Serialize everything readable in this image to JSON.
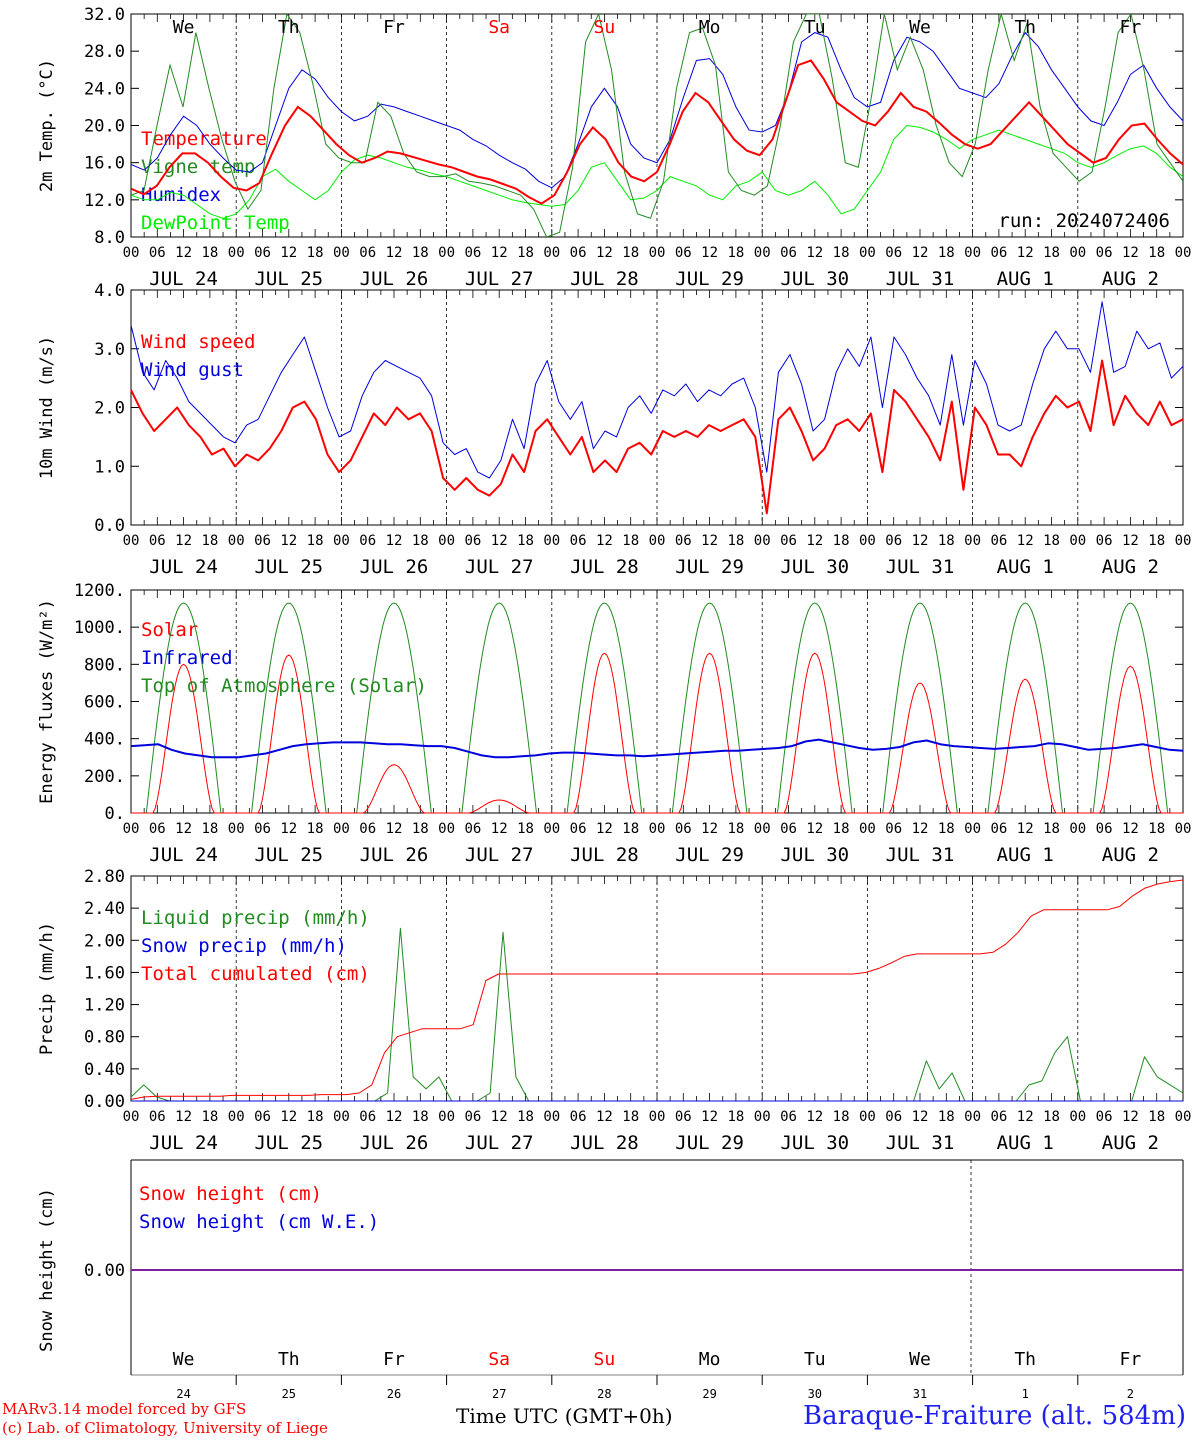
{
  "chart_data": [
    {
      "type": "line",
      "ylabel": "2m Temp. (°C)",
      "ylim": [
        8,
        32
      ],
      "ytick_labels": [
        "8.0",
        "12.0",
        "16.0",
        "20.0",
        "24.0",
        "28.0",
        "32.0"
      ],
      "day_labels": [
        "We",
        "Th",
        "Fr",
        "Sa",
        "Su",
        "Mo",
        "Tu",
        "We",
        "Th",
        "Fr"
      ],
      "day_colors": [
        "#000000",
        "#000000",
        "#000000",
        "#ff0000",
        "#ff0000",
        "#000000",
        "#000000",
        "#000000",
        "#000000",
        "#000000"
      ],
      "annotation": "run: 2024072406",
      "x_hours_step": 6,
      "series": [
        {
          "name": "Temperature",
          "color": "#ff0000",
          "width": 2,
          "values": [
            13.2,
            12.6,
            13.5,
            15.5,
            17.0,
            17.0,
            16.0,
            14.5,
            13.3,
            13.0,
            13.8,
            17.0,
            20.0,
            22.0,
            21.0,
            19.5,
            18.0,
            16.8,
            16.0,
            16.5,
            17.2,
            17.0,
            16.6,
            16.2,
            15.8,
            15.5,
            15.0,
            14.5,
            14.2,
            13.7,
            13.2,
            12.3,
            11.6,
            12.5,
            15.0,
            18.0,
            19.8,
            18.5,
            16.0,
            14.5,
            14.0,
            15.0,
            18.0,
            21.5,
            23.5,
            22.5,
            20.5,
            18.5,
            17.3,
            16.8,
            18.5,
            22.5,
            26.5,
            27.0,
            25.0,
            22.5,
            21.5,
            20.5,
            20.0,
            21.5,
            23.5,
            22.0,
            21.5,
            20.3,
            19.0,
            18.0,
            17.5,
            18.0,
            19.5,
            21.0,
            22.5,
            21.0,
            19.5,
            18.0,
            17.0,
            16.0,
            16.5,
            18.5,
            20.0,
            20.2,
            18.5,
            17.0,
            15.8
          ]
        },
        {
          "name": "Vigne temp",
          "color": "#228b22",
          "width": 1,
          "values": [
            12.5,
            13.0,
            20.0,
            26.5,
            22.0,
            30.0,
            24.0,
            18.5,
            14.0,
            11.0,
            13.0,
            24.0,
            32.0,
            30.0,
            24.5,
            18.0,
            16.5,
            16.0,
            16.0,
            22.5,
            21.0,
            17.0,
            15.0,
            14.5,
            14.5,
            14.8,
            14.0,
            13.8,
            13.5,
            13.0,
            12.5,
            11.0,
            8.0,
            8.5,
            15.5,
            29.0,
            32.0,
            26.0,
            15.0,
            10.5,
            10.0,
            14.0,
            24.0,
            30.0,
            30.5,
            26.5,
            15.0,
            13.0,
            12.5,
            13.5,
            20.0,
            29.0,
            32.0,
            32.0,
            25.0,
            16.0,
            15.5,
            23.0,
            32.0,
            26.0,
            29.5,
            26.0,
            20.0,
            16.0,
            14.5,
            18.0,
            26.0,
            32.0,
            27.0,
            31.0,
            22.0,
            17.0,
            15.5,
            14.0,
            15.0,
            22.0,
            30.0,
            32.0,
            26.0,
            18.0,
            16.0,
            14.0
          ]
        },
        {
          "name": "Humidex",
          "color": "#0000dd",
          "width": 1,
          "values": [
            15.8,
            15.2,
            16.5,
            19.0,
            21.0,
            20.0,
            18.0,
            16.5,
            15.2,
            15.0,
            16.0,
            20.0,
            24.0,
            26.0,
            25.0,
            23.0,
            21.5,
            20.5,
            21.0,
            22.3,
            22.0,
            21.5,
            21.0,
            20.5,
            20.0,
            19.5,
            18.5,
            17.8,
            16.8,
            16.0,
            15.3,
            14.0,
            13.3,
            14.5,
            18.0,
            22.0,
            24.0,
            22.0,
            18.0,
            16.5,
            16.0,
            18.5,
            23.0,
            27.0,
            27.2,
            25.5,
            22.0,
            19.5,
            19.3,
            20.0,
            23.5,
            29.0,
            30.0,
            29.5,
            26.0,
            23.0,
            22.0,
            22.5,
            27.0,
            29.5,
            29.0,
            28.0,
            26.0,
            24.0,
            23.5,
            23.0,
            24.5,
            27.5,
            30.0,
            28.5,
            26.0,
            24.0,
            22.0,
            20.5,
            20.0,
            22.5,
            25.5,
            26.5,
            24.0,
            22.0,
            20.5
          ]
        },
        {
          "name": "DewPoint Temp",
          "color": "#00ee00",
          "width": 1,
          "values": [
            12.5,
            12.0,
            12.0,
            12.8,
            12.5,
            11.5,
            10.5,
            10.0,
            10.5,
            12.0,
            14.5,
            15.3,
            14.0,
            13.0,
            12.0,
            13.0,
            15.0,
            16.3,
            16.8,
            16.5,
            16.0,
            15.5,
            15.2,
            14.8,
            14.5,
            14.0,
            13.5,
            13.0,
            12.5,
            12.0,
            11.7,
            11.5,
            11.3,
            11.5,
            13.0,
            15.5,
            16.0,
            14.0,
            12.0,
            12.2,
            13.0,
            14.5,
            14.0,
            13.5,
            12.5,
            12.0,
            13.5,
            14.0,
            15.0,
            13.0,
            12.5,
            13.0,
            14.0,
            12.5,
            10.5,
            11.0,
            13.0,
            15.0,
            18.5,
            20.0,
            19.8,
            19.3,
            18.5,
            17.5,
            18.5,
            19.0,
            19.5,
            19.0,
            18.5,
            18.0,
            17.5,
            17.0,
            16.0,
            15.5,
            16.0,
            16.8,
            17.5,
            17.8,
            17.0,
            15.5,
            14.5
          ]
        }
      ]
    },
    {
      "type": "line",
      "ylabel": "10m Wind (m/s)",
      "ylim": [
        0,
        4
      ],
      "ytick_labels": [
        "0.0",
        "1.0",
        "2.0",
        "3.0",
        "4.0"
      ],
      "x_hours_step": 6,
      "series": [
        {
          "name": "Wind speed",
          "color": "#ff0000",
          "width": 2,
          "values": [
            2.3,
            1.9,
            1.6,
            1.8,
            2.0,
            1.7,
            1.5,
            1.2,
            1.3,
            1.0,
            1.2,
            1.1,
            1.3,
            1.6,
            2.0,
            2.1,
            1.8,
            1.2,
            0.9,
            1.1,
            1.5,
            1.9,
            1.7,
            2.0,
            1.8,
            1.9,
            1.6,
            0.8,
            0.6,
            0.8,
            0.6,
            0.5,
            0.7,
            1.2,
            0.9,
            1.6,
            1.8,
            1.5,
            1.2,
            1.5,
            0.9,
            1.1,
            0.9,
            1.3,
            1.4,
            1.2,
            1.6,
            1.5,
            1.6,
            1.5,
            1.7,
            1.6,
            1.7,
            1.8,
            1.5,
            0.2,
            1.8,
            2.0,
            1.6,
            1.1,
            1.3,
            1.7,
            1.8,
            1.6,
            1.9,
            0.9,
            2.3,
            2.1,
            1.8,
            1.5,
            1.1,
            2.1,
            0.6,
            2.0,
            1.7,
            1.2,
            1.2,
            1.0,
            1.5,
            1.9,
            2.2,
            2.0,
            2.1,
            1.6,
            2.8,
            1.7,
            2.2,
            1.9,
            1.7,
            2.1,
            1.7,
            1.8
          ]
        },
        {
          "name": "Wind gust",
          "color": "#0000dd",
          "width": 1,
          "values": [
            3.4,
            2.6,
            2.3,
            2.8,
            2.5,
            2.1,
            1.9,
            1.7,
            1.5,
            1.4,
            1.7,
            1.8,
            2.2,
            2.6,
            2.9,
            3.2,
            2.6,
            2.0,
            1.5,
            1.6,
            2.2,
            2.6,
            2.8,
            2.7,
            2.6,
            2.5,
            2.2,
            1.4,
            1.2,
            1.3,
            0.9,
            0.8,
            1.1,
            1.8,
            1.3,
            2.4,
            2.8,
            2.1,
            1.8,
            2.1,
            1.3,
            1.6,
            1.5,
            2.0,
            2.2,
            1.9,
            2.3,
            2.2,
            2.4,
            2.1,
            2.3,
            2.2,
            2.4,
            2.5,
            2.0,
            0.9,
            2.6,
            2.9,
            2.4,
            1.6,
            1.8,
            2.6,
            3.0,
            2.7,
            3.2,
            2.0,
            3.2,
            2.9,
            2.5,
            2.2,
            1.7,
            2.9,
            1.7,
            2.8,
            2.4,
            1.7,
            1.6,
            1.7,
            2.4,
            3.0,
            3.3,
            3.0,
            3.0,
            2.6,
            3.8,
            2.6,
            2.7,
            3.3,
            3.0,
            3.1,
            2.5,
            2.7
          ]
        }
      ]
    },
    {
      "type": "line",
      "ylabel": "Energy fluxes (W/m²)",
      "ylim": [
        0,
        1200
      ],
      "ytick_labels": [
        "0.",
        "200.",
        "400.",
        "600.",
        "800.",
        "1000.",
        "1200."
      ],
      "x_hours_step": 6,
      "series": [
        {
          "name": "Solar",
          "color": "#ff0000",
          "width": 1,
          "day_peaks": [
            800,
            850,
            260,
            70,
            860,
            860,
            860,
            700,
            720,
            790
          ]
        },
        {
          "name": "Infrared",
          "color": "#0000dd",
          "width": 2,
          "values": [
            360,
            365,
            370,
            340,
            320,
            310,
            300,
            300,
            300,
            310,
            320,
            340,
            360,
            370,
            375,
            380,
            380,
            380,
            375,
            370,
            370,
            365,
            360,
            360,
            350,
            330,
            310,
            300,
            300,
            305,
            310,
            320,
            325,
            325,
            320,
            315,
            310,
            310,
            305,
            310,
            315,
            320,
            325,
            330,
            335,
            335,
            340,
            345,
            350,
            360,
            385,
            395,
            380,
            365,
            350,
            340,
            345,
            355,
            380,
            390,
            370,
            360,
            355,
            350,
            345,
            350,
            355,
            360,
            375,
            370,
            355,
            340,
            345,
            350,
            360,
            370,
            355,
            340,
            335
          ]
        },
        {
          "name": "Top of Atmosphere (Solar)",
          "color": "#228b22",
          "width": 1,
          "day_peak": 1130
        }
      ]
    },
    {
      "type": "line",
      "ylabel": "Precip (mm/h)",
      "ylim": [
        0,
        2.8
      ],
      "ytick_labels": [
        "0.00",
        "0.40",
        "0.80",
        "1.20",
        "1.60",
        "2.00",
        "2.40",
        "2.80"
      ],
      "x_hours_step": 6,
      "series": [
        {
          "name": "Liquid precip (mm/h)",
          "color": "#228b22",
          "width": 1,
          "values": [
            0.05,
            0.2,
            0.05,
            0,
            0,
            0,
            0,
            0,
            0,
            0,
            0,
            0,
            0,
            0,
            0,
            0,
            0,
            0,
            0,
            0,
            0.1,
            2.15,
            0.3,
            0.15,
            0.3,
            0,
            0,
            0,
            0.1,
            2.1,
            0.3,
            0,
            0,
            0,
            0,
            0,
            0,
            0,
            0,
            0,
            0,
            0,
            0,
            0,
            0,
            0,
            0,
            0,
            0,
            0,
            0,
            0,
            0,
            0,
            0,
            0,
            0,
            0,
            0,
            0,
            0,
            0,
            0.5,
            0.15,
            0.35,
            0,
            0,
            0,
            0,
            0,
            0.2,
            0.25,
            0.6,
            0.8,
            0,
            0,
            0,
            0,
            0,
            0.55,
            0.3,
            0.2,
            0.1
          ]
        },
        {
          "name": "Snow precip (mm/h)",
          "color": "#0000dd",
          "width": 1,
          "values": [
            0,
            0
          ]
        },
        {
          "name": "Total cumulated (cm)",
          "color": "#ff0000",
          "width": 1,
          "values": [
            0.02,
            0.05,
            0.06,
            0.06,
            0.06,
            0.06,
            0.06,
            0.06,
            0.07,
            0.07,
            0.07,
            0.07,
            0.07,
            0.07,
            0.07,
            0.08,
            0.08,
            0.08,
            0.1,
            0.2,
            0.6,
            0.8,
            0.85,
            0.9,
            0.9,
            0.9,
            0.9,
            0.95,
            1.5,
            1.58,
            1.58,
            1.58,
            1.58,
            1.58,
            1.58,
            1.58,
            1.58,
            1.58,
            1.58,
            1.58,
            1.58,
            1.58,
            1.58,
            1.58,
            1.58,
            1.58,
            1.58,
            1.58,
            1.58,
            1.58,
            1.58,
            1.58,
            1.58,
            1.58,
            1.58,
            1.58,
            1.58,
            1.58,
            1.6,
            1.65,
            1.72,
            1.8,
            1.83,
            1.83,
            1.83,
            1.83,
            1.83,
            1.83,
            1.85,
            1.95,
            2.1,
            2.3,
            2.38,
            2.38,
            2.38,
            2.38,
            2.38,
            2.38,
            2.42,
            2.55,
            2.65,
            2.7,
            2.73,
            2.75
          ]
        }
      ]
    },
    {
      "type": "line",
      "ylabel": "Snow height (cm)",
      "ytick_labels": [
        "0.00"
      ],
      "day_labels": [
        "We",
        "Th",
        "Fr",
        "Sa",
        "Su",
        "Mo",
        "Tu",
        "We",
        "Th",
        "Fr"
      ],
      "day_colors": [
        "#000000",
        "#000000",
        "#000000",
        "#ff0000",
        "#ff0000",
        "#000000",
        "#000000",
        "#000000",
        "#000000",
        "#000000"
      ],
      "day_numbers": [
        "24",
        "25",
        "26",
        "27",
        "28",
        "29",
        "30",
        "31",
        "1",
        "2"
      ],
      "series": [
        {
          "name": "Snow height (cm)",
          "color": "#ff0000",
          "values": [
            0,
            0
          ]
        },
        {
          "name": "Snow height (cm W.E.)",
          "color": "#0000dd",
          "values": [
            0,
            0
          ]
        }
      ]
    }
  ],
  "axes": {
    "date_labels": [
      "JUL 24",
      "JUL 25",
      "JUL 26",
      "JUL 27",
      "JUL 28",
      "JUL 29",
      "JUL 30",
      "JUL 31",
      "AUG  1",
      "AUG  2"
    ],
    "hour_labels": [
      "00",
      "06",
      "12",
      "18"
    ],
    "final_hour": "00",
    "xlabel": "Time UTC (GMT+0h)"
  },
  "footer": {
    "credit_line1": "MARv3.14 model forced by GFS",
    "credit_line2": "(c) Lab. of Climatology, University of Liege",
    "station": "Baraque-Fraiture (alt. 584m)"
  }
}
